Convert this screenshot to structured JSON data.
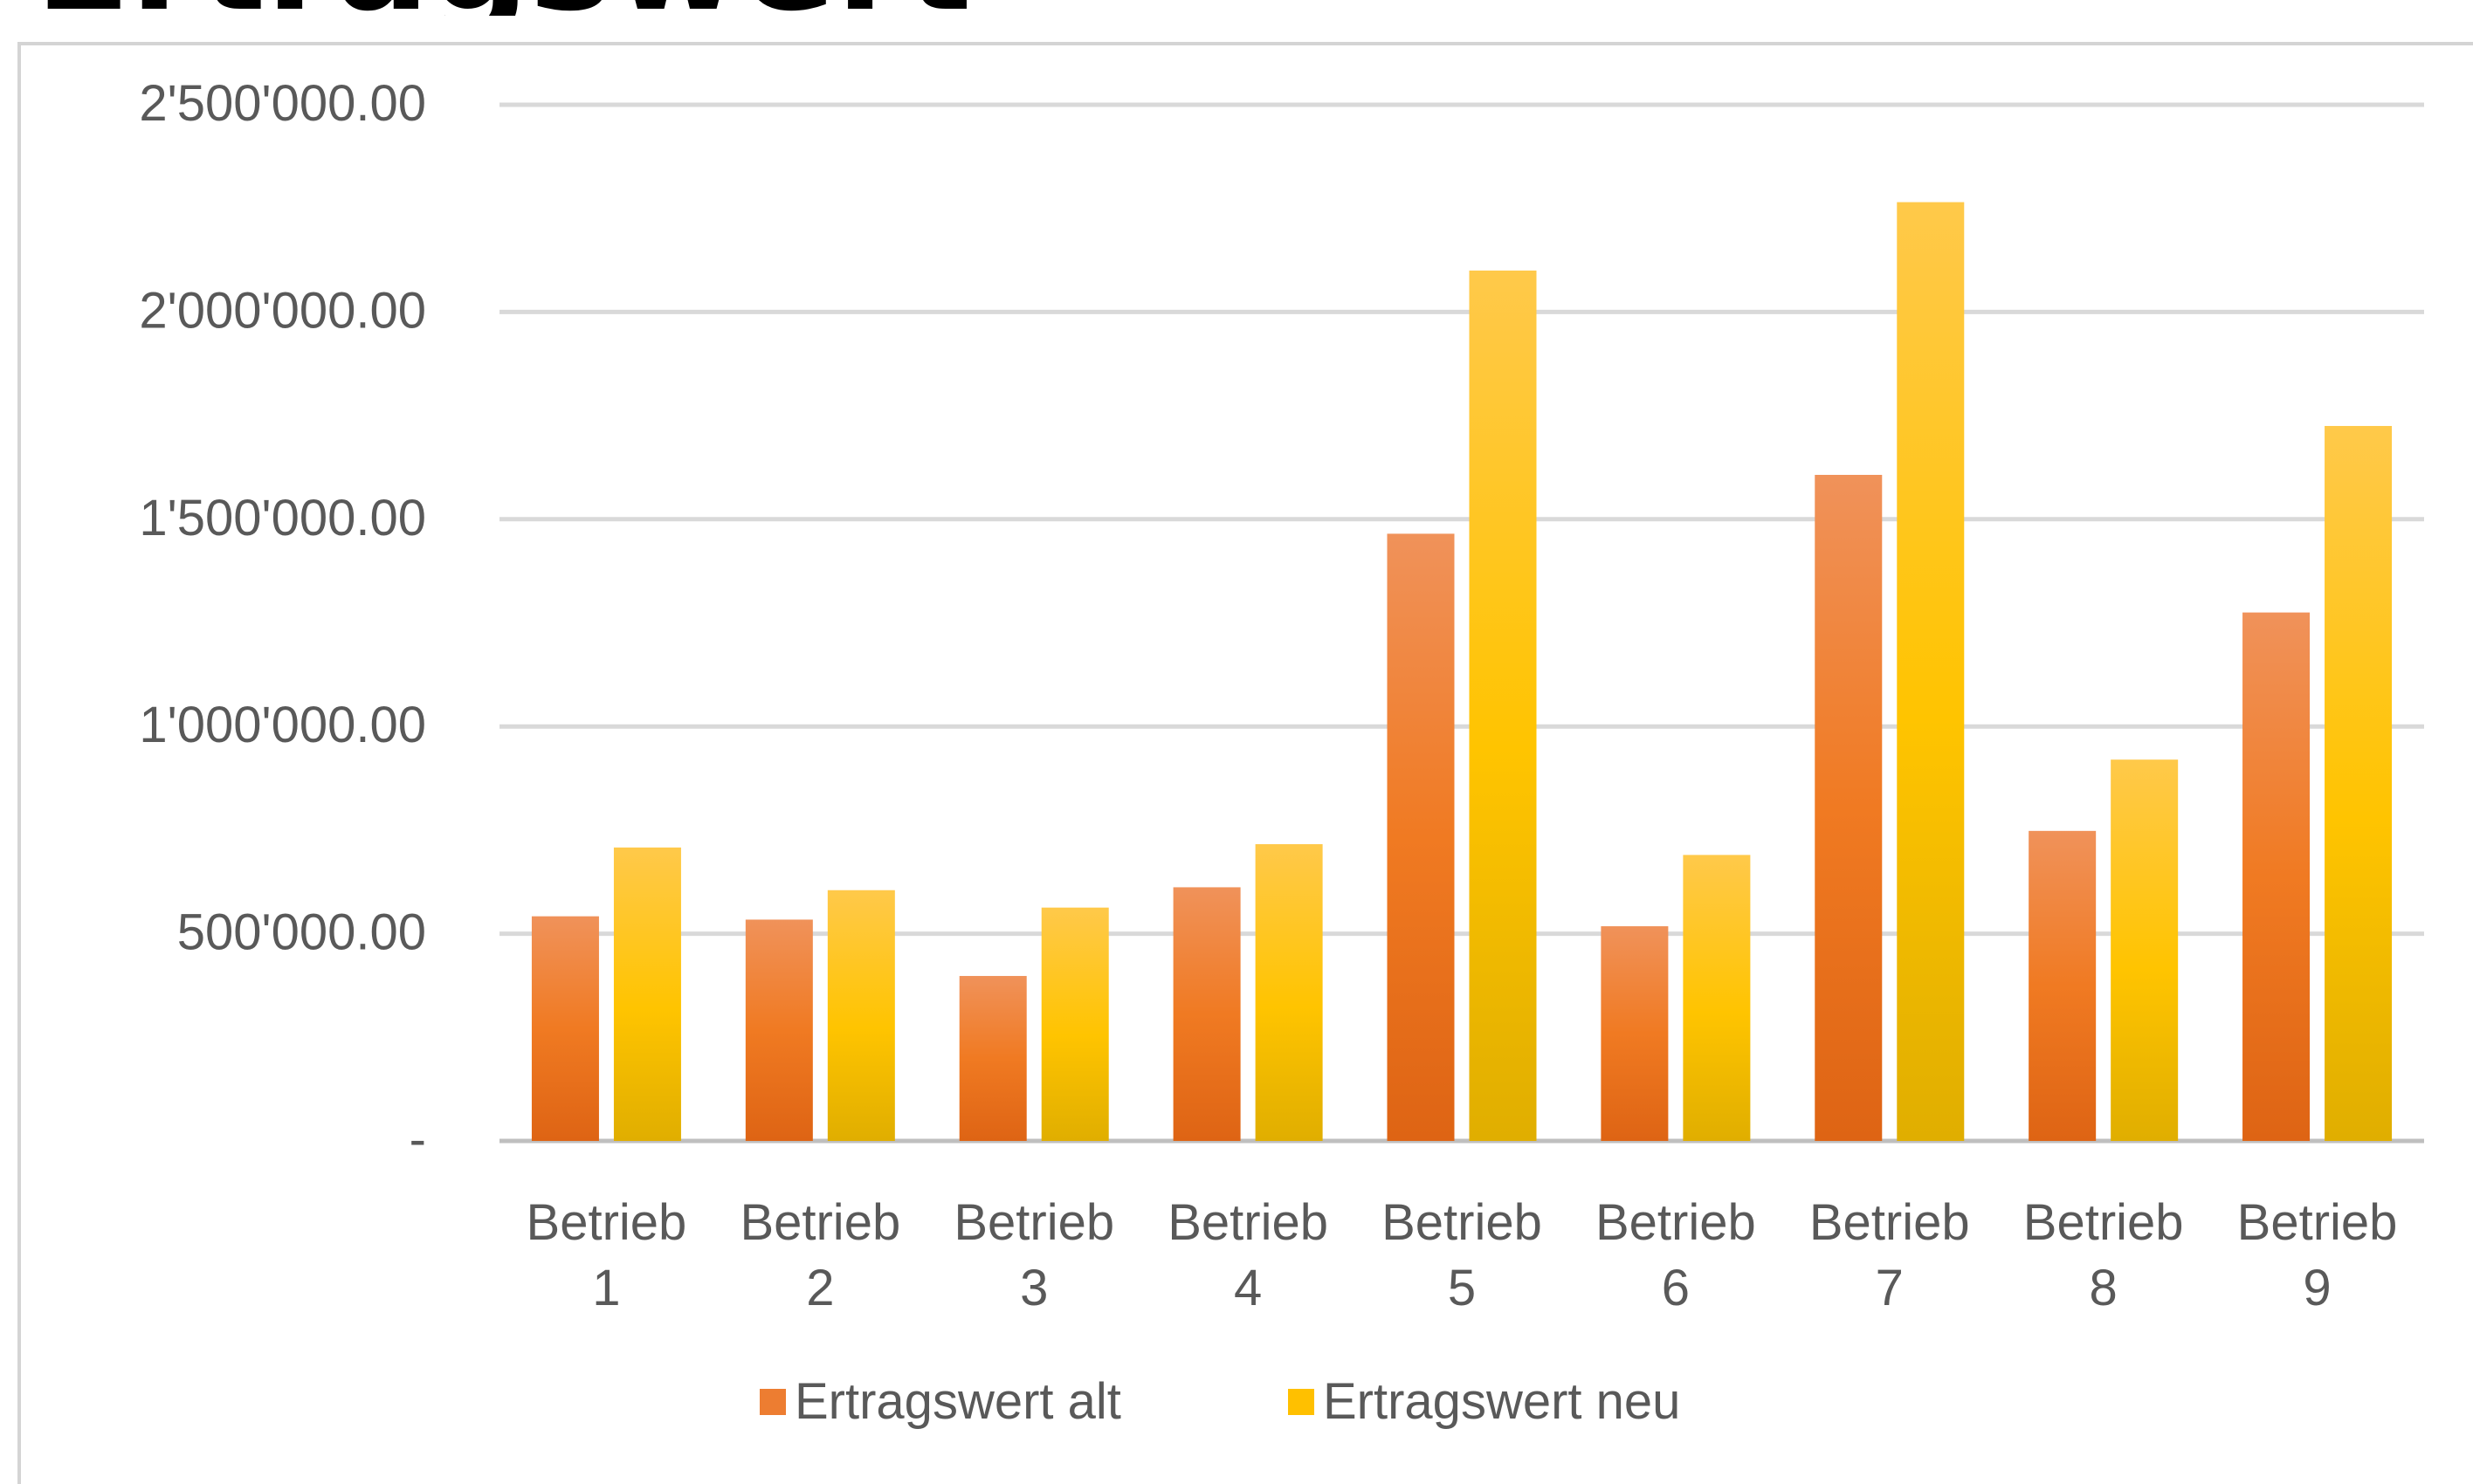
{
  "page_title": "Ertragswert",
  "chart_data": {
    "type": "bar",
    "categories": [
      [
        "Betrieb",
        "1"
      ],
      [
        "Betrieb",
        "2"
      ],
      [
        "Betrieb",
        "3"
      ],
      [
        "Betrieb",
        "4"
      ],
      [
        "Betrieb",
        "5"
      ],
      [
        "Betrieb",
        "6"
      ],
      [
        "Betrieb",
        "7"
      ],
      [
        "Betrieb",
        "8"
      ],
      [
        "Betrieb",
        "9"
      ]
    ],
    "series": [
      {
        "name": "Ertragswert alt",
        "color": "#ED7D31",
        "values": [
          542000,
          534000,
          398000,
          612000,
          1465000,
          518000,
          1607000,
          748000,
          1275000
        ]
      },
      {
        "name": "Ertragswert neu",
        "color": "#FFC000",
        "values": [
          708000,
          605000,
          563000,
          716000,
          2100000,
          690000,
          2265000,
          920000,
          1725000
        ]
      }
    ],
    "y_ticks": [
      "-",
      "500'000.00",
      "1'000'000.00",
      "1'500'000.00",
      "2'000'000.00",
      "2'500'000.00"
    ],
    "ylim": [
      0,
      2500000
    ],
    "grid": true,
    "legend_position": "bottom"
  }
}
